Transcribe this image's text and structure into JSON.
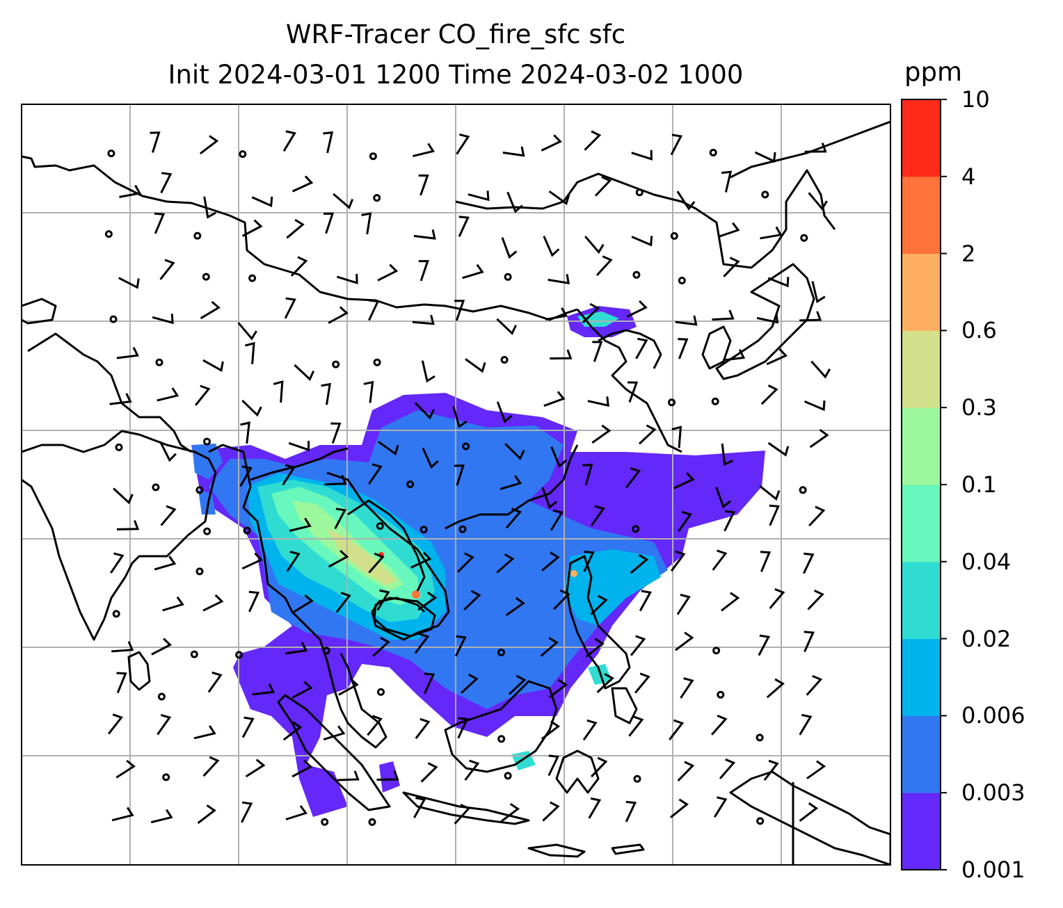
{
  "title": {
    "line1": "WRF-Tracer CO_fire_sfc sfc",
    "line2": "Init 2024-03-01 1200 Time 2024-03-02 1000"
  },
  "colorbar": {
    "unit": "ppm",
    "levels": [
      "0.001",
      "0.003",
      "0.006",
      "0.02",
      "0.04",
      "0.1",
      "0.3",
      "0.6",
      "2",
      "4",
      "10"
    ],
    "colors": [
      "#6428f8",
      "#3277f2",
      "#00b3ec",
      "#30dcd2",
      "#68f7bc",
      "#9cf89c",
      "#d2e08a",
      "#feb060",
      "#ff7339",
      "#ff2a18"
    ]
  },
  "map": {
    "background": "#ffffff",
    "coastline_color": "#000000",
    "gridline_color": "#b0b0b0",
    "wind_barb_color": "#000000"
  }
}
